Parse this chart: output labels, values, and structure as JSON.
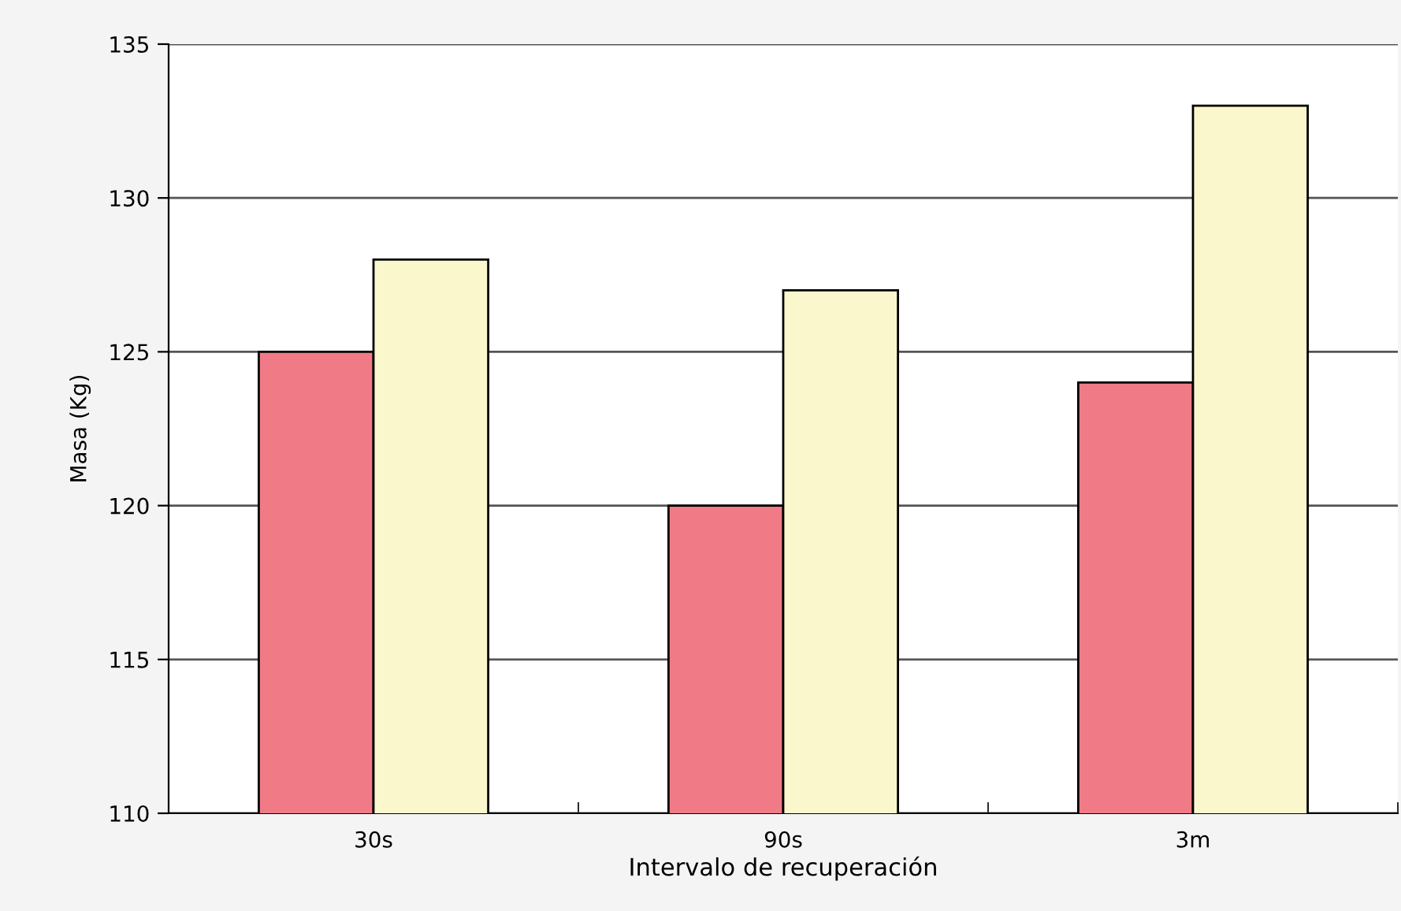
{
  "chart_data": {
    "type": "bar",
    "xlabel": "Intervalo de recuperación",
    "ylabel": "Masa (Kg)",
    "categories": [
      "30s",
      "90s",
      "3m"
    ],
    "series": [
      {
        "color": "#f07b86",
        "values": [
          125,
          120,
          124
        ]
      },
      {
        "color": "#fbf7cc",
        "values": [
          128,
          127,
          133
        ]
      }
    ],
    "ylim": [
      110,
      135
    ],
    "yticks": [
      110,
      115,
      120,
      125,
      130,
      135
    ],
    "grid": "y"
  }
}
